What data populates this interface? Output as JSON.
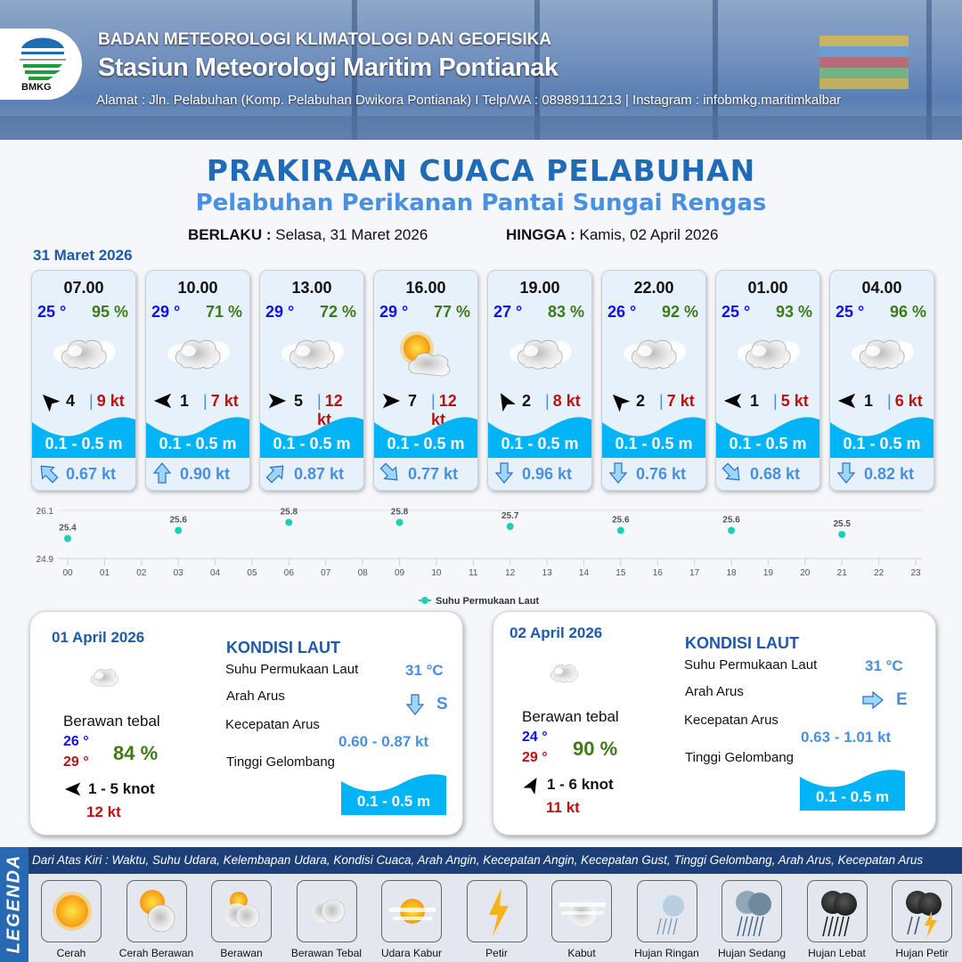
{
  "header": {
    "org": "BADAN METEOROLOGI KLIMATOLOGI DAN GEOFISIKA",
    "station": "Stasiun Meteorologi Maritim Pontianak",
    "address": "Alamat : Jln. Pelabuhan (Komp. Pelabuhan Dwikora Pontianak) I Telp/WA : 08989111213 | Instagram : infobmkg.maritimkalbar",
    "logo_text": "BMKG"
  },
  "title": "PRAKIRAAN CUACA PELABUHAN",
  "subtitle": "Pelabuhan Perikanan Pantai Sungai Rengas",
  "validity": {
    "from_label": "BERLAKU :",
    "from": "Selasa, 31 Maret 2026",
    "to_label": "HINGGA :",
    "to": "Kamis, 02 April 2026"
  },
  "day0_date": "31 Maret 2026",
  "forecasts": [
    {
      "time": "07.00",
      "temp": "25 °",
      "hum": "95 %",
      "weather": "Berawan Tebal",
      "wind_dir_deg": 225,
      "wind": "4",
      "gust": "9 kt",
      "wave": "0.1 - 0.5 m",
      "current_dir_deg": -45,
      "current": "0.67 kt"
    },
    {
      "time": "10.00",
      "temp": "29 °",
      "hum": "71 %",
      "weather": "Berawan Tebal",
      "wind_dir_deg": 180,
      "wind": "1",
      "gust": "7 kt",
      "wave": "0.1 - 0.5 m",
      "current_dir_deg": 0,
      "current": "0.90 kt"
    },
    {
      "time": "13.00",
      "temp": "29 °",
      "hum": "72 %",
      "weather": "Berawan Tebal",
      "wind_dir_deg": 0,
      "wind": "5",
      "gust": "12 kt",
      "wave": "0.1 - 0.5 m",
      "current_dir_deg": 45,
      "current": "0.87 kt"
    },
    {
      "time": "16.00",
      "temp": "29 °",
      "hum": "77 %",
      "weather": "Cerah Berawan",
      "wind_dir_deg": 0,
      "wind": "7",
      "gust": "12 kt",
      "wave": "0.1 - 0.5 m",
      "current_dir_deg": 135,
      "current": "0.77 kt"
    },
    {
      "time": "19.00",
      "temp": "27 °",
      "hum": "83 %",
      "weather": "Berawan Tebal",
      "wind_dir_deg": 240,
      "wind": "2",
      "gust": "8 kt",
      "wave": "0.1 - 0.5 m",
      "current_dir_deg": 180,
      "current": "0.96 kt"
    },
    {
      "time": "22.00",
      "temp": "26 °",
      "hum": "92 %",
      "weather": "Berawan Tebal",
      "wind_dir_deg": 225,
      "wind": "2",
      "gust": "7 kt",
      "wave": "0.1 - 0.5 m",
      "current_dir_deg": 180,
      "current": "0.76 kt"
    },
    {
      "time": "01.00",
      "temp": "25 °",
      "hum": "93 %",
      "weather": "Berawan Tebal",
      "wind_dir_deg": 180,
      "wind": "1",
      "gust": "5 kt",
      "wave": "0.1 - 0.5 m",
      "current_dir_deg": 135,
      "current": "0.68 kt"
    },
    {
      "time": "04.00",
      "temp": "25 °",
      "hum": "96 %",
      "weather": "Berawan Tebal",
      "wind_dir_deg": 180,
      "wind": "1",
      "gust": "6 kt",
      "wave": "0.1 - 0.5 m",
      "current_dir_deg": 180,
      "current": "0.82 kt"
    }
  ],
  "chart_data": {
    "type": "scatter",
    "series": [
      {
        "name": "Suhu Permukaan Laut",
        "color": "#1ecfb8",
        "x": [
          "00",
          "03",
          "06",
          "09",
          "12",
          "15",
          "18",
          "21"
        ],
        "y": [
          25.4,
          25.6,
          25.8,
          25.8,
          25.7,
          25.6,
          25.6,
          25.5
        ]
      }
    ],
    "x_ticks": [
      "00",
      "01",
      "02",
      "03",
      "04",
      "05",
      "06",
      "07",
      "08",
      "09",
      "10",
      "11",
      "12",
      "13",
      "14",
      "15",
      "16",
      "17",
      "18",
      "19",
      "20",
      "21",
      "22",
      "23"
    ],
    "y_ticks": [
      "26.1",
      "24.9"
    ],
    "ylim": [
      24.9,
      26.1
    ],
    "legend": "bottom",
    "grid": true,
    "data_labels": true
  },
  "days": [
    {
      "date": "01 April 2026",
      "condition": "Berawan tebal",
      "tmin": "26 °",
      "tmax": "29 °",
      "hum": "84 %",
      "wind_dir_deg": 180,
      "wind": "1  - 5 knot",
      "gust": "12 kt",
      "sea_title": "KONDISI LAUT",
      "sst_label": "Suhu Permukaan Laut",
      "sst": "31 °C",
      "cur_dir_label": "Arah Arus",
      "cur_dir_deg": 180,
      "cur_dir": "S",
      "cur_speed_label": "Kecepatan Arus",
      "cur_speed": "0.60 - 0.87 kt",
      "wave_label": "Tinggi Gelombang",
      "wave": "0.1 - 0.5 m"
    },
    {
      "date": "02 April 2026",
      "condition": "Berawan tebal",
      "tmin": "24 °",
      "tmax": "29 °",
      "hum": "90 %",
      "wind_dir_deg": 300,
      "wind": "1  - 6 knot",
      "gust": "11 kt",
      "sea_title": "KONDISI LAUT",
      "sst_label": "Suhu Permukaan Laut",
      "sst": "31 °C",
      "cur_dir_label": "Arah Arus",
      "cur_dir_deg": 90,
      "cur_dir": "E",
      "cur_speed_label": "Kecepatan Arus",
      "cur_speed": "0.63 - 1.01 kt",
      "wave_label": "Tinggi Gelombang",
      "wave": "0.1 - 0.5 m"
    }
  ],
  "legend": {
    "side_label": "LEGENDA",
    "description": "Dari Atas Kiri : Waktu, Suhu Udara, Kelembapan Udara, Kondisi Cuaca, Arah Angin, Kecepatan Angin, Kecepatan Gust, Tinggi Gelombang, Arah Arus, Kecepatan Arus",
    "items": [
      {
        "label": "Cerah",
        "icon": "sun"
      },
      {
        "label": "Cerah Berawan",
        "icon": "sun-cloud"
      },
      {
        "label": "Berawan",
        "icon": "cloud-sun"
      },
      {
        "label": "Berawan Tebal",
        "icon": "cloud"
      },
      {
        "label": "Udara Kabur",
        "icon": "haze"
      },
      {
        "label": "Petir",
        "icon": "lightning"
      },
      {
        "label": "Kabut",
        "icon": "fog"
      },
      {
        "label": "Hujan Ringan",
        "icon": "light-rain"
      },
      {
        "label": "Hujan Sedang",
        "icon": "moderate-rain"
      },
      {
        "label": "Hujan Lebat",
        "icon": "heavy-rain"
      },
      {
        "label": "Hujan Petir",
        "icon": "thunderstorm"
      }
    ]
  },
  "colors": {
    "wave": "#00b4f5",
    "temp": "#1010ee",
    "humidity": "#3f7a1a",
    "gust": "#c01010",
    "current": "#4a8ee0",
    "title": "#1f6bb5"
  }
}
